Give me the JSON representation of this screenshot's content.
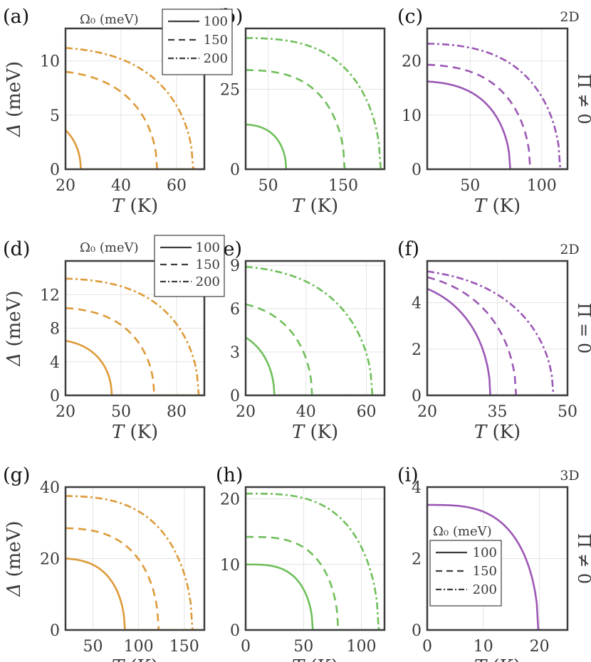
{
  "figure": {
    "legend_title": "Ω₀ (meV)",
    "legend_entries": [
      "100",
      "150",
      "200"
    ],
    "row_labels": [
      "2D",
      "2D",
      "3D"
    ],
    "right_labels": [
      "Π ≠ 0",
      "Π = 0",
      "Π ≠ 0"
    ],
    "colors": {
      "orange": "#dd9a38",
      "green": "#6fbf5a",
      "purple": "#9b57b5"
    }
  },
  "chart_data": [
    {
      "panel": "(a)",
      "type": "line",
      "xlabel": "T (K)",
      "ylabel": "Δ (meV)",
      "xlim": [
        20,
        70
      ],
      "ylim": [
        0,
        13
      ],
      "xticks": [
        20,
        40,
        60
      ],
      "xtick_labels": [
        "20",
        "40",
        "60"
      ],
      "yticks": [
        0,
        5,
        10
      ],
      "ytick_labels": [
        "0",
        "5",
        "10"
      ],
      "series": [
        {
          "name": "100",
          "style": "solid",
          "Delta0": 3.6,
          "Tc": 25.5,
          "x0": 20
        },
        {
          "name": "150",
          "style": "dashed",
          "Delta0": 9.0,
          "Tc": 53,
          "x0": 20
        },
        {
          "name": "200",
          "style": "dashdot",
          "Delta0": 11.2,
          "Tc": 66,
          "x0": 20
        }
      ]
    },
    {
      "panel": "(b)",
      "type": "line",
      "xlabel": "T (K)",
      "ylabel": "",
      "xlim": [
        20,
        205
      ],
      "ylim": [
        0,
        44
      ],
      "xticks": [
        50,
        150
      ],
      "xtick_labels": [
        "50",
        "150"
      ],
      "yticks": [
        0,
        25
      ],
      "ytick_labels": [
        "0",
        "25"
      ],
      "series": [
        {
          "name": "100",
          "style": "solid",
          "Delta0": 14,
          "Tc": 74,
          "x0": 20
        },
        {
          "name": "150",
          "style": "dashed",
          "Delta0": 31,
          "Tc": 152,
          "x0": 20
        },
        {
          "name": "200",
          "style": "dashdot",
          "Delta0": 41,
          "Tc": 200,
          "x0": 20
        }
      ]
    },
    {
      "panel": "(c)",
      "type": "line",
      "xlabel": "T (K)",
      "ylabel": "",
      "xlim": [
        20,
        118
      ],
      "ylim": [
        0,
        26
      ],
      "xticks": [
        50,
        100
      ],
      "xtick_labels": [
        "50",
        "100"
      ],
      "yticks": [
        0,
        10,
        20
      ],
      "ytick_labels": [
        "0",
        "10",
        "20"
      ],
      "series": [
        {
          "name": "100",
          "style": "solid",
          "Delta0": 16.2,
          "Tc": 78,
          "x0": 20
        },
        {
          "name": "150",
          "style": "dashed",
          "Delta0": 19.3,
          "Tc": 92,
          "x0": 20
        },
        {
          "name": "200",
          "style": "dashdot",
          "Delta0": 23.2,
          "Tc": 113,
          "x0": 20
        }
      ]
    },
    {
      "panel": "(d)",
      "type": "line",
      "xlabel": "T (K)",
      "ylabel": "Δ (meV)",
      "xlim": [
        20,
        95
      ],
      "ylim": [
        0,
        16
      ],
      "xticks": [
        20,
        50,
        80
      ],
      "xtick_labels": [
        "20",
        "50",
        "80"
      ],
      "yticks": [
        0,
        4,
        8,
        12
      ],
      "ytick_labels": [
        "0",
        "4",
        "8",
        "12"
      ],
      "series": [
        {
          "name": "100",
          "style": "solid",
          "Delta0": 6.5,
          "Tc": 45,
          "x0": 20
        },
        {
          "name": "150",
          "style": "dashed",
          "Delta0": 10.4,
          "Tc": 68,
          "x0": 20
        },
        {
          "name": "200",
          "style": "dashdot",
          "Delta0": 13.9,
          "Tc": 92,
          "x0": 20
        }
      ]
    },
    {
      "panel": "(e)",
      "type": "line",
      "xlabel": "T (K)",
      "ylabel": "",
      "xlim": [
        20,
        66
      ],
      "ylim": [
        0,
        9.3
      ],
      "xticks": [
        20,
        40,
        60
      ],
      "xtick_labels": [
        "20",
        "40",
        "60"
      ],
      "yticks": [
        0,
        3,
        6,
        9
      ],
      "ytick_labels": [
        "0",
        "3",
        "6",
        "9"
      ],
      "series": [
        {
          "name": "100",
          "style": "solid",
          "Delta0": 4.0,
          "Tc": 29.5,
          "x0": 20
        },
        {
          "name": "150",
          "style": "dashed",
          "Delta0": 6.3,
          "Tc": 42,
          "x0": 20
        },
        {
          "name": "200",
          "style": "dashdot",
          "Delta0": 8.9,
          "Tc": 62,
          "x0": 20
        }
      ]
    },
    {
      "panel": "(f)",
      "type": "line",
      "xlabel": "T (K)",
      "ylabel": "",
      "xlim": [
        20,
        50
      ],
      "ylim": [
        0,
        5.8
      ],
      "xticks": [
        20,
        35,
        50
      ],
      "xtick_labels": [
        "20",
        "35",
        "50"
      ],
      "yticks": [
        0,
        2,
        4
      ],
      "ytick_labels": [
        "0",
        "2",
        "4"
      ],
      "series": [
        {
          "name": "100",
          "style": "solid",
          "Delta0": 4.6,
          "Tc": 33.5,
          "x0": 20
        },
        {
          "name": "150",
          "style": "dashed",
          "Delta0": 5.1,
          "Tc": 39,
          "x0": 20
        },
        {
          "name": "200",
          "style": "dashdot",
          "Delta0": 5.35,
          "Tc": 47,
          "x0": 20
        }
      ]
    },
    {
      "panel": "(g)",
      "type": "line",
      "xlabel": "T (K)",
      "ylabel": "Δ (meV)",
      "xlim": [
        20,
        172
      ],
      "ylim": [
        0,
        40
      ],
      "xticks": [
        50,
        100,
        150
      ],
      "xtick_labels": [
        "50",
        "100",
        "150"
      ],
      "yticks": [
        0,
        20,
        40
      ],
      "ytick_labels": [
        "0",
        "20",
        "40"
      ],
      "series": [
        {
          "name": "100",
          "style": "solid",
          "Delta0": 20,
          "Tc": 85,
          "x0": 20
        },
        {
          "name": "150",
          "style": "dashed",
          "Delta0": 28.5,
          "Tc": 122,
          "x0": 20
        },
        {
          "name": "200",
          "style": "dashdot",
          "Delta0": 37.5,
          "Tc": 159,
          "x0": 20
        }
      ]
    },
    {
      "panel": "(h)",
      "type": "line",
      "xlabel": "T (K)",
      "ylabel": "",
      "xlim": [
        0,
        120
      ],
      "ylim": [
        0,
        21.8
      ],
      "xticks": [
        0,
        50,
        100
      ],
      "xtick_labels": [
        "0",
        "50",
        "100"
      ],
      "yticks": [
        0,
        10,
        20
      ],
      "ytick_labels": [
        "0",
        "10",
        "20"
      ],
      "series": [
        {
          "name": "100",
          "style": "solid",
          "Delta0": 10,
          "Tc": 58,
          "x0": 0
        },
        {
          "name": "150",
          "style": "dashed",
          "Delta0": 14.2,
          "Tc": 80,
          "x0": 0
        },
        {
          "name": "200",
          "style": "dashdot",
          "Delta0": 20.8,
          "Tc": 115,
          "x0": 0
        }
      ]
    },
    {
      "panel": "(i)",
      "type": "line",
      "xlabel": "T (K)",
      "ylabel": "",
      "xlim": [
        0,
        25
      ],
      "ylim": [
        0,
        4
      ],
      "xticks": [
        0,
        10,
        20
      ],
      "xtick_labels": [
        "0",
        "10",
        "20"
      ],
      "yticks": [
        0,
        2,
        4
      ],
      "ytick_labels": [
        "0",
        "2",
        "4"
      ],
      "series": [
        {
          "name": "100",
          "style": "solid",
          "Delta0": 3.5,
          "Tc": 19.8,
          "x0": 0
        }
      ]
    }
  ]
}
